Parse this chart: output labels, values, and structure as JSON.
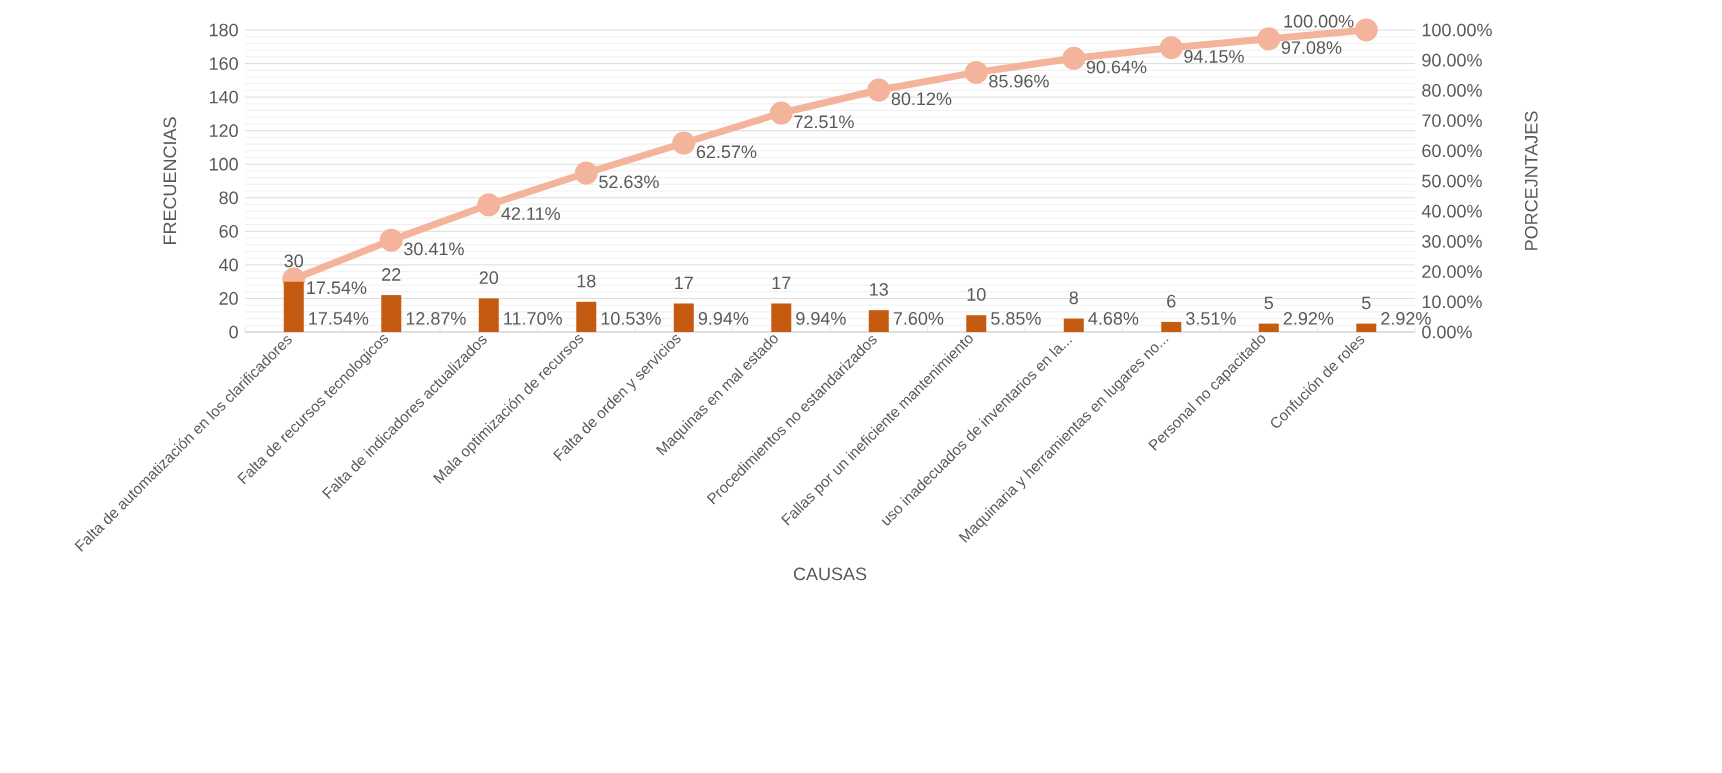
{
  "chart_data": {
    "type": "bar",
    "xlabel": "CAUSAS",
    "ylabel": "FRECUENCIAS",
    "y2label": "PORCEJNTAJES",
    "categories": [
      "Falta de automatización en los clarificadores",
      "Falta de recursos tecnologicos",
      "Falta de indicadores actualizados",
      "Mala optimización de recursos",
      "Falta de orden y servicios",
      "Maquinas en mal estado",
      "Procedimientos no estandarizados",
      "Fallas por un ineficiente mantenimiento",
      "uso inadecuados de inventarios en la...",
      "Maquinaria y herramientas en lugares no...",
      "Personal no capacitado",
      "Confución de roles"
    ],
    "series": [
      {
        "color": "#c55a11",
        "values": [
          30,
          22,
          20,
          18,
          17,
          17,
          13,
          10,
          8,
          6,
          5,
          5
        ],
        "value_labels": [
          "30",
          "22",
          "20",
          "18",
          "17",
          "17",
          "13",
          "10",
          "8",
          "6",
          "5",
          "5"
        ]
      },
      {
        "type": "line",
        "axis": "y2",
        "color": "#f4b49c",
        "values": [
          17.54,
          30.41,
          42.11,
          52.63,
          62.57,
          72.51,
          80.12,
          85.96,
          90.64,
          94.15,
          97.08,
          100.0
        ],
        "value_labels": [
          "17.54%",
          "30.41%",
          "42.11%",
          "52.63%",
          "62.57%",
          "72.51%",
          "80.12%",
          "85.96%",
          "90.64%",
          "94.15%",
          "97.08%",
          "100.00%"
        ]
      }
    ],
    "marker": "circle",
    "grid": "y",
    "ylim": [
      0,
      180
    ],
    "yticks": [
      0,
      20,
      40,
      60,
      80,
      100,
      120,
      140,
      160,
      180
    ],
    "y2lim": [
      0,
      100
    ],
    "y2ticks": [
      {
        "value": 0,
        "label": "0.00%"
      },
      {
        "value": 10,
        "label": "10.00%"
      },
      {
        "value": 20,
        "label": "20.00%"
      },
      {
        "value": 30,
        "label": "30.00%"
      },
      {
        "value": 40,
        "label": "40.00%"
      },
      {
        "value": 50,
        "label": "50.00%"
      },
      {
        "value": 60,
        "label": "60.00%"
      },
      {
        "value": 70,
        "label": "70.00%"
      },
      {
        "value": 80,
        "label": "80.00%"
      },
      {
        "value": 90,
        "label": "90.00%"
      },
      {
        "value": 100,
        "label": "100.00%"
      }
    ],
    "annotations": [
      "17.54%",
      "12.87%",
      "11.70%",
      "10.53%",
      "9.94%",
      "9.94%",
      "7.60%",
      "5.85%",
      "4.68%",
      "3.51%",
      "2.92%",
      "2.92%"
    ]
  }
}
